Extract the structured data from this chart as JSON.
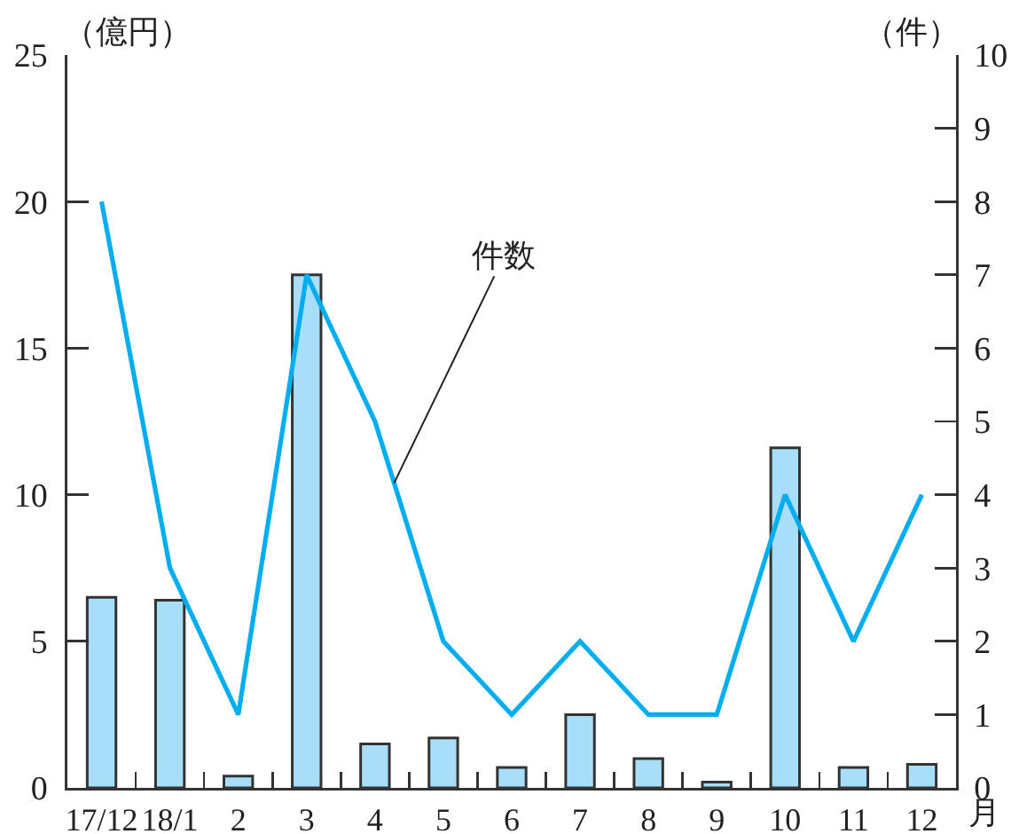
{
  "chart_data": {
    "type": "bar",
    "xlabel": "月",
    "ylabel": "（億円）",
    "y2label": "（件）",
    "categories": [
      "17/12",
      "18/1",
      "2",
      "3",
      "4",
      "5",
      "6",
      "7",
      "8",
      "9",
      "10",
      "11",
      "12"
    ],
    "series": [
      {
        "color": "#a8def7",
        "values": [
          6.5,
          6.4,
          0.4,
          17.5,
          1.5,
          1.7,
          0.7,
          2.5,
          1.0,
          0.2,
          11.6,
          0.7,
          0.8
        ]
      },
      {
        "type": "line",
        "name": "件数",
        "color": "#00aeef",
        "axis": "y2",
        "values": [
          8,
          3,
          1,
          7,
          5,
          2,
          1,
          2,
          1,
          1,
          4,
          2,
          4
        ]
      }
    ],
    "ylim": [
      0,
      25
    ],
    "yticks": [
      0,
      5,
      10,
      15,
      20,
      25
    ],
    "y2lim": [
      0,
      10
    ],
    "y2ticks": [
      0,
      1,
      2,
      3,
      4,
      5,
      6,
      7,
      8,
      9,
      10
    ],
    "grid": false,
    "legend": false
  }
}
